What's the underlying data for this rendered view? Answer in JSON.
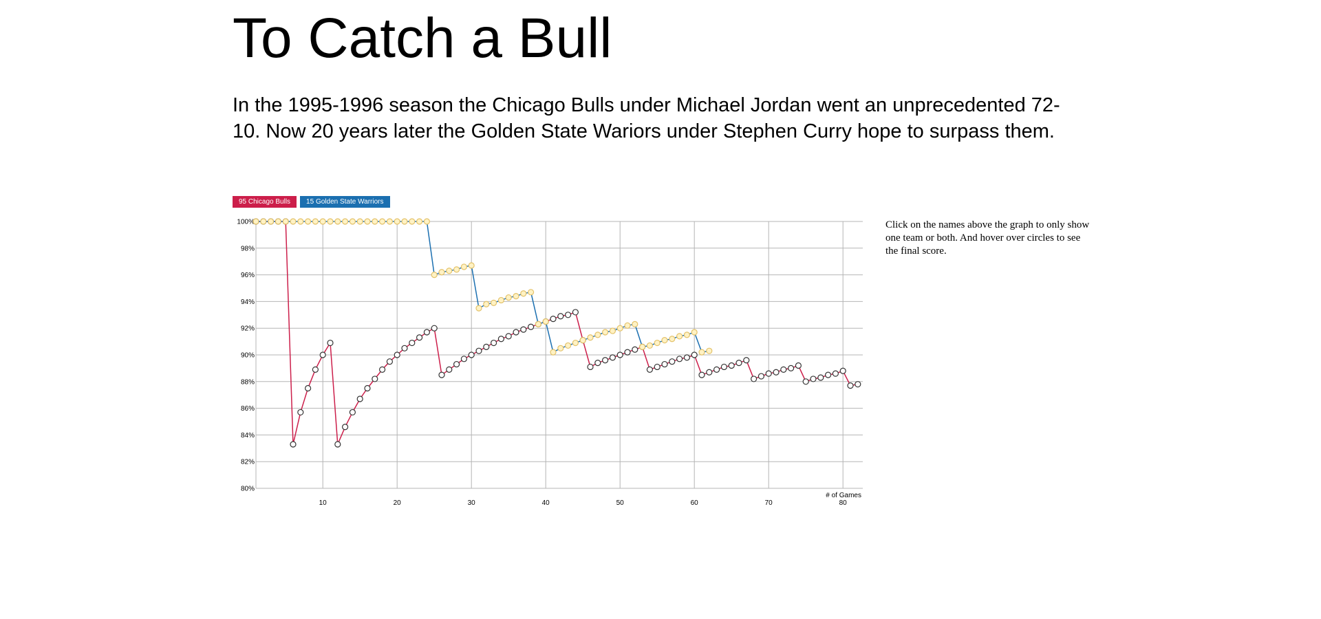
{
  "page": {
    "title": "To Catch a Bull",
    "intro": "In the 1995-1996 season the Chicago Bulls under Michael Jordan went an unprecedented 72-10. Now 20 years later the Golden State Wariors under Stephen Curry hope to surpass them.",
    "note": "Click on the names above the graph to only show one team or both. And hover over circles to see the final score."
  },
  "legend": {
    "bulls_label": "95 Chicago Bulls",
    "warriors_label": "15 Golden State Warriors",
    "bulls_color": "#cc1e4a",
    "warriors_color": "#1b6fb0"
  },
  "chart_data": {
    "type": "line",
    "title": "",
    "xlabel": "# of Games",
    "ylabel": "",
    "xlim": [
      1,
      82
    ],
    "ylim": [
      80,
      100
    ],
    "x_ticks": [
      10,
      20,
      30,
      40,
      50,
      60,
      70,
      80
    ],
    "y_ticks": [
      80,
      82,
      84,
      86,
      88,
      90,
      92,
      94,
      96,
      98,
      100
    ],
    "y_tick_labels": [
      "80%",
      "82%",
      "84%",
      "86%",
      "88%",
      "90%",
      "92%",
      "94%",
      "96%",
      "98%",
      "100%"
    ],
    "grid": true,
    "series": [
      {
        "name": "95 Chicago Bulls",
        "line_color": "#cc1e4a",
        "marker_fill": "#ffffff",
        "marker_stroke": "#333333",
        "x": [
          1,
          2,
          3,
          4,
          5,
          6,
          7,
          8,
          9,
          10,
          11,
          12,
          13,
          14,
          15,
          16,
          17,
          18,
          19,
          20,
          21,
          22,
          23,
          24,
          25,
          26,
          27,
          28,
          29,
          30,
          31,
          32,
          33,
          34,
          35,
          36,
          37,
          38,
          39,
          40,
          41,
          42,
          43,
          44,
          45,
          46,
          47,
          48,
          49,
          50,
          51,
          52,
          53,
          54,
          55,
          56,
          57,
          58,
          59,
          60,
          61,
          62,
          63,
          64,
          65,
          66,
          67,
          68,
          69,
          70,
          71,
          72,
          73,
          74,
          75,
          76,
          77,
          78,
          79,
          80,
          81,
          82
        ],
        "values": [
          100,
          100,
          100,
          100,
          100,
          83.3,
          85.7,
          87.5,
          88.9,
          90,
          90.9,
          83.3,
          84.6,
          85.7,
          86.7,
          87.5,
          88.2,
          88.9,
          89.5,
          90,
          90.5,
          90.9,
          91.3,
          91.7,
          92,
          88.5,
          88.9,
          89.3,
          89.7,
          90,
          90.3,
          90.6,
          90.9,
          91.2,
          91.4,
          91.7,
          91.9,
          92.1,
          92.3,
          92.5,
          92.7,
          92.9,
          93,
          93.2,
          91.1,
          89.1,
          89.4,
          89.6,
          89.8,
          90,
          90.2,
          90.4,
          90.6,
          88.9,
          89.1,
          89.3,
          89.5,
          89.7,
          89.8,
          90,
          88.5,
          88.7,
          88.9,
          89.1,
          89.2,
          89.4,
          89.6,
          88.2,
          88.4,
          88.6,
          88.7,
          88.9,
          89,
          89.2,
          88,
          88.2,
          88.3,
          88.5,
          88.6,
          88.8,
          87.7,
          87.8
        ]
      },
      {
        "name": "15 Golden State Warriors",
        "line_color": "#1b6fb0",
        "marker_fill": "#fff2c4",
        "marker_stroke": "#e3c26a",
        "x": [
          1,
          2,
          3,
          4,
          5,
          6,
          7,
          8,
          9,
          10,
          11,
          12,
          13,
          14,
          15,
          16,
          17,
          18,
          19,
          20,
          21,
          22,
          23,
          24,
          25,
          26,
          27,
          28,
          29,
          30,
          31,
          32,
          33,
          34,
          35,
          36,
          37,
          38,
          39,
          40,
          41,
          42,
          43,
          44,
          45,
          46,
          47,
          48,
          49,
          50,
          51,
          52,
          53,
          54,
          55,
          56,
          57,
          58,
          59,
          60,
          61,
          62
        ],
        "values": [
          100,
          100,
          100,
          100,
          100,
          100,
          100,
          100,
          100,
          100,
          100,
          100,
          100,
          100,
          100,
          100,
          100,
          100,
          100,
          100,
          100,
          100,
          100,
          100,
          96,
          96.2,
          96.3,
          96.4,
          96.6,
          96.7,
          93.5,
          93.8,
          93.9,
          94.1,
          94.3,
          94.4,
          94.6,
          94.7,
          92.3,
          92.5,
          90.2,
          90.5,
          90.7,
          90.9,
          91.1,
          91.3,
          91.5,
          91.7,
          91.8,
          92,
          92.2,
          92.3,
          90.6,
          90.7,
          90.9,
          91.1,
          91.2,
          91.4,
          91.5,
          91.7,
          90.2,
          90.3
        ]
      }
    ]
  }
}
